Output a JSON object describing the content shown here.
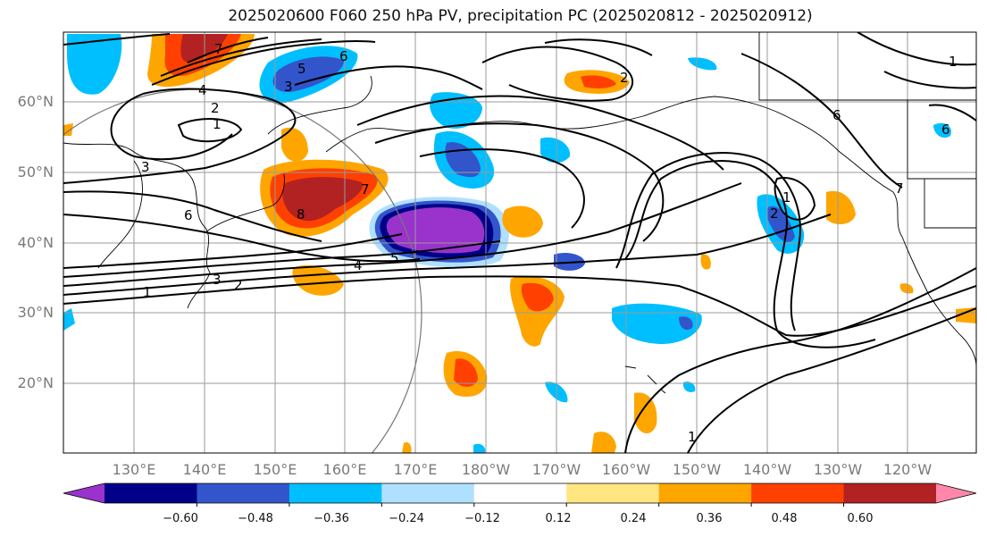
{
  "title": "2025020600 F060 250 hPa PV, precipitation PC (2025020812 - 2025020912)",
  "lat_labels": [
    "60°N",
    "50°N",
    "40°N",
    "30°N",
    "20°N"
  ],
  "lon_labels": [
    "130°E",
    "140°E",
    "150°E",
    "160°E",
    "170°E",
    "180°W",
    "170°W",
    "160°W",
    "150°W",
    "140°W",
    "130°W",
    "120°W"
  ],
  "colorbar": {
    "ticks": [
      "−0.60",
      "−0.48",
      "−0.36",
      "−0.24",
      "−0.12",
      "0.12",
      "0.24",
      "0.36",
      "0.48",
      "0.60"
    ],
    "colors": [
      "#9933cc",
      "#000088",
      "#3355cc",
      "#00bfff",
      "#b0e0ff",
      "#ffffff",
      "#ffe680",
      "#ffa500",
      "#ff4000",
      "#b22222",
      "#ff88aa"
    ]
  },
  "contour_labels": [
    "7",
    "6",
    "5",
    "3",
    "4",
    "2",
    "1",
    "3",
    "6",
    "7",
    "8",
    "5",
    "4",
    "3",
    "2",
    "1",
    "6",
    "1",
    "1",
    "2",
    "7",
    "6",
    "1",
    "2"
  ]
}
